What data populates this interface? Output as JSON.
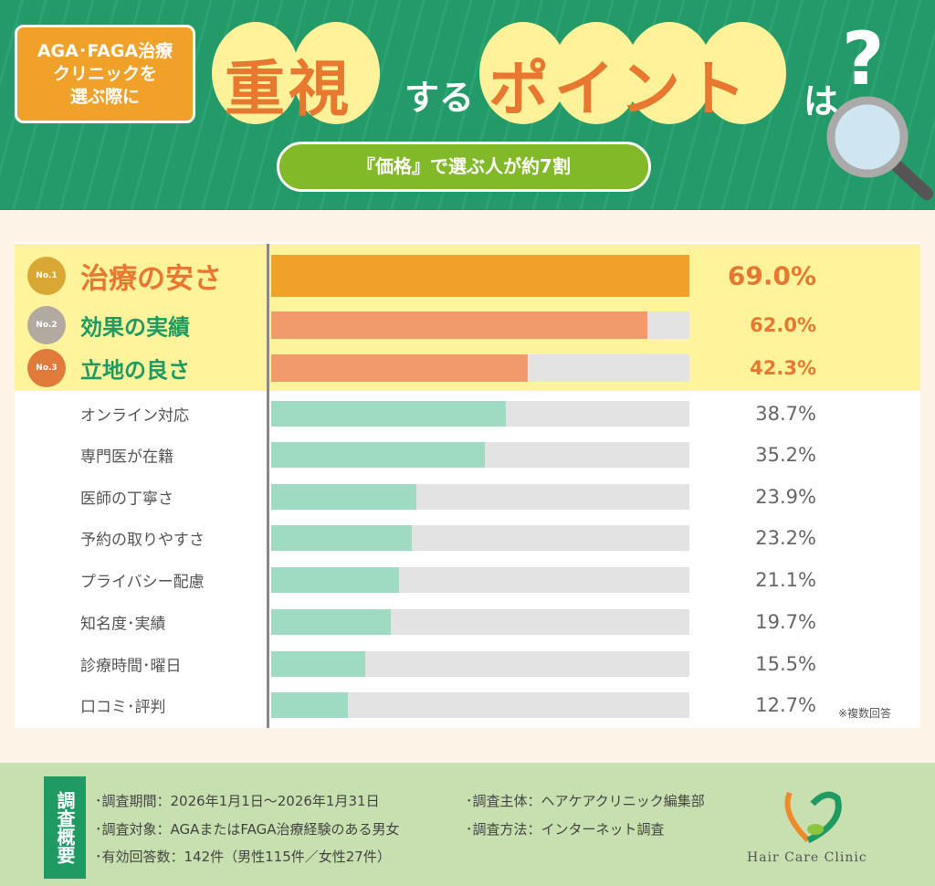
{
  "header": {
    "badge_line1": "AGA･FAGA治療",
    "badge_line2": "クリニックを",
    "badge_line3": "選ぶ際に",
    "title_part1": "重視",
    "title_part2": "する",
    "title_part3": "ポイント",
    "title_part4": "は",
    "question_mark": "?",
    "subtitle": "『価格』で選ぶ人が約7割",
    "icon": "magnifier-icon",
    "colors": {
      "green": "#239a68",
      "orange": "#f0a12a",
      "yellow": "#fff29a",
      "lime": "#82b928"
    }
  },
  "chart_data": {
    "type": "bar",
    "orientation": "horizontal",
    "xlim": [
      0,
      69
    ],
    "unit": "%",
    "categories": [
      "治療の安さ",
      "効果の実績",
      "立地の良さ",
      "オンライン対応",
      "専門医が在籍",
      "医師の丁寧さ",
      "予約の取りやすさ",
      "プライバシー配慮",
      "知名度･実績",
      "診療時間･曜日",
      "口コミ･評判"
    ],
    "values": [
      69.0,
      62.0,
      42.3,
      38.7,
      35.2,
      23.9,
      23.2,
      21.1,
      19.7,
      15.5,
      12.7
    ],
    "value_labels": [
      "69.0%",
      "62.0%",
      "42.3%",
      "38.7%",
      "35.2%",
      "23.9%",
      "23.2%",
      "21.1%",
      "19.7%",
      "15.5%",
      "12.7%"
    ],
    "ranks": [
      "No.1",
      "No.2",
      "No.3"
    ],
    "colors": {
      "rank1": "#f0a12a",
      "rank2_3": "#f29a6c",
      "others": "#9fdac3",
      "track": "#e3e3e3",
      "highlight": "#fff49c"
    },
    "note": "※複数回答"
  },
  "footer": {
    "tag": "調査概要",
    "items": [
      "･調査期間：2026年1月1日～2026年1月31日",
      "･調査対象：AGAまたはFAGA治療経験のある男女",
      "･有効回答数：142件（男性115件／女性27件）",
      "･調査主体：ヘアケアクリニック編集部",
      "･調査方法：インターネット調査"
    ],
    "logo_text": "Hair Care Clinic"
  }
}
